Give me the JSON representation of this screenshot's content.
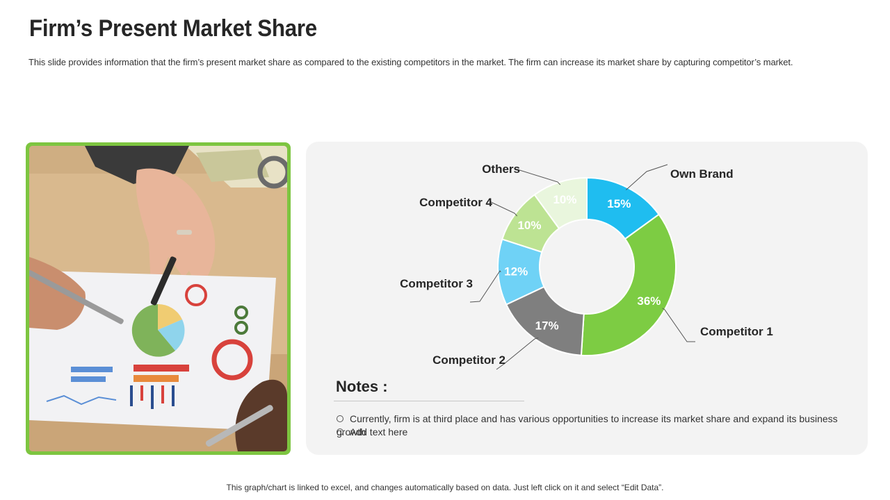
{
  "slide": {
    "title": "Firm’s Present Market Share",
    "subtitle": "This slide provides information that the firm’s present market share as compared to the existing competitors in the market. The firm can increase its market share by capturing competitor’s market.",
    "footer": "This graph/chart is linked to excel, and changes automatically based on data. Just left click on it and select “Edit Data”."
  },
  "photo": {
    "description_icon": "people-reviewing-charts-photo"
  },
  "notes": {
    "title": "Notes :",
    "items": [
      "Currently, firm is at third place and has various opportunities to increase its market share and expand its business growth",
      "Add text here"
    ]
  },
  "chart_data": {
    "type": "pie",
    "donut": true,
    "title": "",
    "legend": "none",
    "labels_placement": "outside-with-leader-lines",
    "categories": [
      "Own Brand",
      "Competitor 1",
      "Competitor 2",
      "Competitor 3",
      "Competitor 4",
      "Others"
    ],
    "values": [
      15,
      36,
      17,
      12,
      10,
      10
    ],
    "data_labels": [
      "15%",
      "36%",
      "17%",
      "12%",
      "10%",
      "10%"
    ],
    "colors": [
      "#1fbdf0",
      "#7dcc43",
      "#7f7f7f",
      "#6fd2f6",
      "#bde393",
      "#e9f6dd"
    ]
  }
}
